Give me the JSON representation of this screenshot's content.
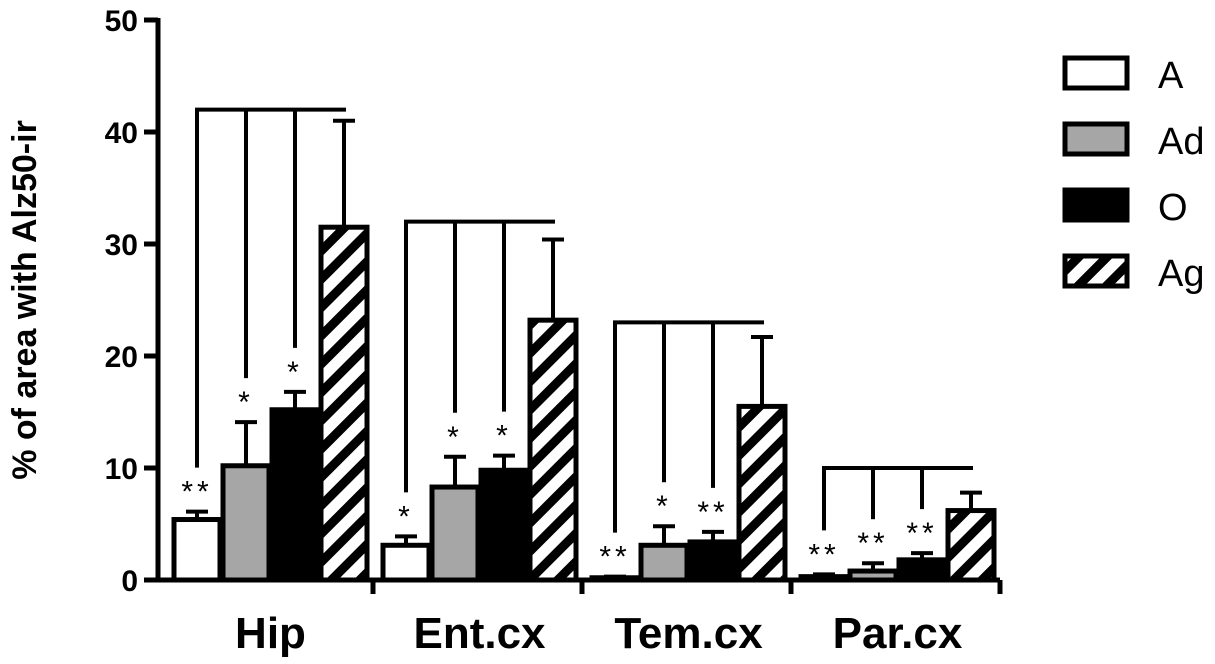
{
  "chart_data": {
    "type": "bar",
    "title": "",
    "xlabel": "",
    "ylabel": "% of area with Alz50-ir",
    "ylim": [
      0,
      50
    ],
    "yticks": [
      0,
      10,
      20,
      30,
      40,
      50
    ],
    "categories": [
      "Hip",
      "Ent.cx",
      "Tem.cx",
      "Par.cx"
    ],
    "legend_position": "top-right",
    "grid": false,
    "series": [
      {
        "name": "A",
        "pattern": "white",
        "values": [
          5.4,
          3.1,
          0.2,
          0.3
        ],
        "errors": [
          0.7,
          0.8,
          0.1,
          0.2
        ]
      },
      {
        "name": "Ad",
        "pattern": "gray",
        "values": [
          10.2,
          8.3,
          3.1,
          0.8
        ],
        "errors": [
          3.9,
          2.7,
          1.7,
          0.7
        ]
      },
      {
        "name": "O",
        "pattern": "black",
        "values": [
          15.2,
          9.8,
          3.4,
          1.8
        ],
        "errors": [
          1.6,
          1.3,
          0.9,
          0.6
        ]
      },
      {
        "name": "Ag",
        "pattern": "hatched",
        "values": [
          31.5,
          23.2,
          15.5,
          6.2
        ],
        "errors": [
          9.5,
          7.2,
          6.2,
          1.6
        ]
      }
    ],
    "significance": [
      {
        "category": "Hip",
        "bracket_y": 42.0,
        "marks": [
          "**",
          "*",
          "*"
        ]
      },
      {
        "category": "Ent.cx",
        "bracket_y": 32.0,
        "marks": [
          "*",
          "*",
          "*"
        ]
      },
      {
        "category": "Tem.cx",
        "bracket_y": 23.0,
        "marks": [
          "**",
          "*",
          "**"
        ]
      },
      {
        "category": "Par.cx",
        "bracket_y": 10.0,
        "marks": [
          "**",
          "**",
          "**"
        ]
      }
    ],
    "colors": {
      "gray": "#a6a6a6",
      "black": "#000000",
      "white": "#ffffff"
    }
  }
}
